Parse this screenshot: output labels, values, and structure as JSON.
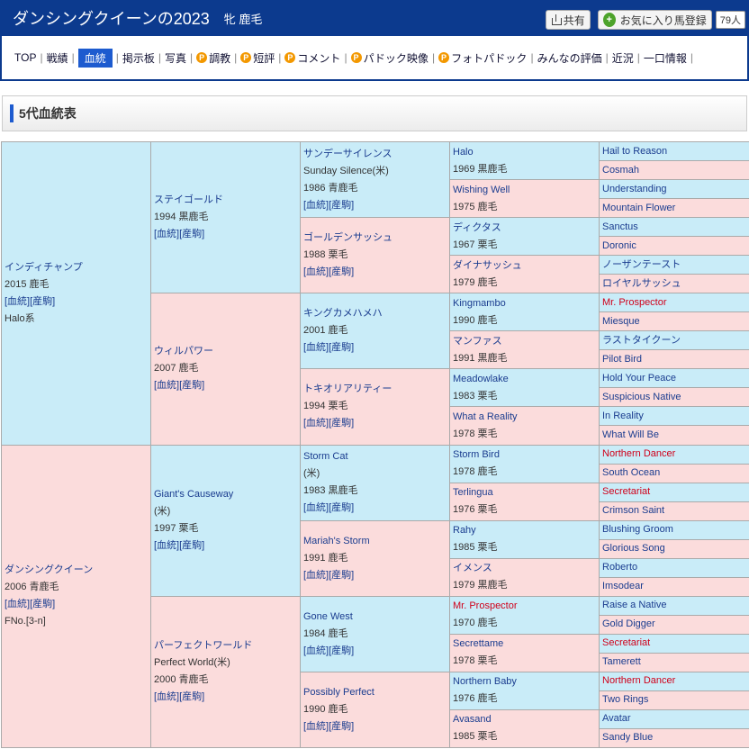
{
  "header": {
    "title": "ダンシングクイーンの2023",
    "sub": "牝 鹿毛",
    "share_label": "共有",
    "fav_label": "お気に入り馬登録",
    "fav_count": "79人"
  },
  "nav": [
    {
      "label": "TOP",
      "p": false,
      "active": false
    },
    {
      "label": "戦績",
      "p": false,
      "active": false
    },
    {
      "label": "血統",
      "p": false,
      "active": true
    },
    {
      "label": "掲示板",
      "p": false,
      "active": false
    },
    {
      "label": "写真",
      "p": false,
      "active": false
    },
    {
      "label": "調教",
      "p": true,
      "active": false
    },
    {
      "label": "短評",
      "p": true,
      "active": false
    },
    {
      "label": "コメント",
      "p": true,
      "active": false
    },
    {
      "label": "パドック映像",
      "p": true,
      "active": false
    },
    {
      "label": "フォトパドック",
      "p": true,
      "active": false
    },
    {
      "label": "みんなの評価",
      "p": false,
      "active": false
    },
    {
      "label": "近況",
      "p": false,
      "active": false
    },
    {
      "label": "一口情報",
      "p": false,
      "active": false
    }
  ],
  "section_title": "5代血統表",
  "links_label": "[血統][産駒]",
  "pedigree": {
    "g1": [
      {
        "name": "インディチャンプ",
        "info": [
          "2015 鹿毛"
        ],
        "extra": "Halo系"
      },
      {
        "name": "ダンシングクイーン",
        "info": [
          "2006 青鹿毛"
        ],
        "extra": "FNo.[3-n]"
      }
    ],
    "g2": [
      {
        "name": "ステイゴールド",
        "info": [
          "1994 黒鹿毛"
        ]
      },
      {
        "name": "ウィルパワー",
        "info": [
          "2007 鹿毛"
        ]
      },
      {
        "name": "Giant's Causeway",
        "info": [
          "(米)",
          "1997 栗毛"
        ]
      },
      {
        "name": "パーフェクトワールド",
        "info": [
          "Perfect World(米)",
          "2000 青鹿毛"
        ]
      }
    ],
    "g3": [
      {
        "name": "サンデーサイレンス",
        "info": [
          "Sunday Silence(米)",
          "1986 青鹿毛"
        ]
      },
      {
        "name": "ゴールデンサッシュ",
        "info": [
          "1988 栗毛"
        ]
      },
      {
        "name": "キングカメハメハ",
        "info": [
          "2001 鹿毛"
        ]
      },
      {
        "name": "トキオリアリティー",
        "info": [
          "1994 栗毛"
        ]
      },
      {
        "name": "Storm Cat",
        "info": [
          "(米)",
          "1983 黒鹿毛"
        ]
      },
      {
        "name": "Mariah's Storm",
        "info": [
          "1991 鹿毛"
        ]
      },
      {
        "name": "Gone West",
        "info": [
          "1984 鹿毛"
        ]
      },
      {
        "name": "Possibly Perfect",
        "info": [
          "1990 鹿毛"
        ]
      }
    ],
    "g4": [
      {
        "name": "Halo",
        "year": "1969 黒鹿毛",
        "red": false
      },
      {
        "name": "Wishing Well",
        "year": "1975 鹿毛",
        "red": false
      },
      {
        "name": "ディクタス",
        "year": "1967 栗毛",
        "red": false
      },
      {
        "name": "ダイナサッシュ",
        "year": "1979 鹿毛",
        "red": false
      },
      {
        "name": "Kingmambo",
        "year": "1990 鹿毛",
        "red": false
      },
      {
        "name": "マンファス",
        "year": "1991 黒鹿毛",
        "red": false
      },
      {
        "name": "Meadowlake",
        "year": "1983 栗毛",
        "red": false
      },
      {
        "name": "What a Reality",
        "year": "1978 栗毛",
        "red": false
      },
      {
        "name": "Storm Bird",
        "year": "1978 鹿毛",
        "red": false
      },
      {
        "name": "Terlingua",
        "year": "1976 栗毛",
        "red": false
      },
      {
        "name": "Rahy",
        "year": "1985 栗毛",
        "red": false
      },
      {
        "name": "イメンス",
        "year": "1979 黒鹿毛",
        "red": false
      },
      {
        "name": "Mr. Prospector",
        "year": "1970 鹿毛",
        "red": true
      },
      {
        "name": "Secrettame",
        "year": "1978 栗毛",
        "red": false
      },
      {
        "name": "Northern Baby",
        "year": "1976 鹿毛",
        "red": false
      },
      {
        "name": "Avasand",
        "year": "1985 栗毛",
        "red": false
      }
    ],
    "g5": [
      {
        "name": "Hail to Reason",
        "red": false
      },
      {
        "name": "Cosmah",
        "red": false
      },
      {
        "name": "Understanding",
        "red": false
      },
      {
        "name": "Mountain Flower",
        "red": false
      },
      {
        "name": "Sanctus",
        "red": false
      },
      {
        "name": "Doronic",
        "red": false
      },
      {
        "name": "ノーザンテースト",
        "red": false
      },
      {
        "name": "ロイヤルサッシュ",
        "red": false
      },
      {
        "name": "Mr. Prospector",
        "red": true
      },
      {
        "name": "Miesque",
        "red": false
      },
      {
        "name": "ラストタイクーン",
        "red": false
      },
      {
        "name": "Pilot Bird",
        "red": false
      },
      {
        "name": "Hold Your Peace",
        "red": false
      },
      {
        "name": "Suspicious Native",
        "red": false
      },
      {
        "name": "In Reality",
        "red": false
      },
      {
        "name": "What Will Be",
        "red": false
      },
      {
        "name": "Northern Dancer",
        "red": true
      },
      {
        "name": "South Ocean",
        "red": false
      },
      {
        "name": "Secretariat",
        "red": true
      },
      {
        "name": "Crimson Saint",
        "red": false
      },
      {
        "name": "Blushing Groom",
        "red": false
      },
      {
        "name": "Glorious Song",
        "red": false
      },
      {
        "name": "Roberto",
        "red": false
      },
      {
        "name": "Imsodear",
        "red": false
      },
      {
        "name": "Raise a Native",
        "red": false
      },
      {
        "name": "Gold Digger",
        "red": false
      },
      {
        "name": "Secretariat",
        "red": true
      },
      {
        "name": "Tamerett",
        "red": false
      },
      {
        "name": "Northern Dancer",
        "red": true
      },
      {
        "name": "Two Rings",
        "red": false
      },
      {
        "name": "Avatar",
        "red": false
      },
      {
        "name": "Sandy Blue",
        "red": false
      }
    ]
  },
  "colors": {
    "header_bg": "#0c3a8e",
    "male_bg": "#c9ecf8",
    "female_bg": "#fbdcdc",
    "link": "#1a3c8f",
    "red_name": "#d0001a",
    "active_tab": "#1d5bcf"
  }
}
